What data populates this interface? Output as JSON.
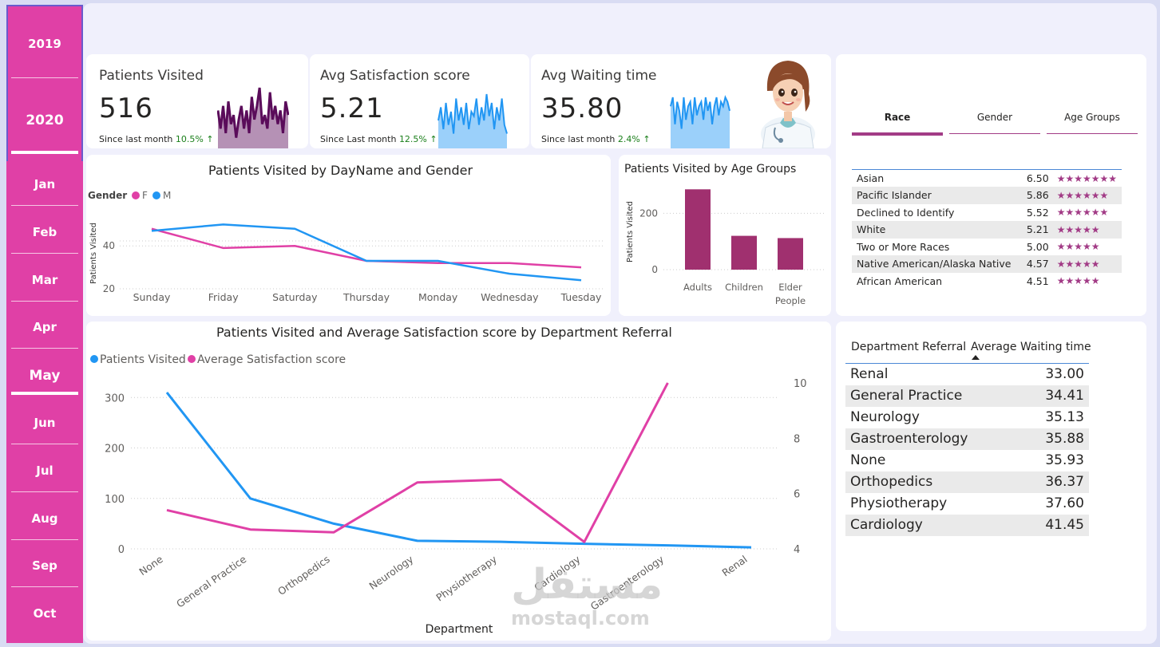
{
  "sidebar": {
    "years": [
      "2019",
      "2020"
    ],
    "selected_year": "2020",
    "months": [
      "Jan",
      "Feb",
      "Mar",
      "Apr",
      "May",
      "Jun",
      "Jul",
      "Aug",
      "Sep",
      "Oct"
    ],
    "selected_month": "May",
    "accent": "#e040a6"
  },
  "kpis": [
    {
      "title": "Patients Visited",
      "value": "516",
      "since_label": "Since last month",
      "change": "10.5% ↑",
      "spark_color": "#5a0c5a"
    },
    {
      "title": "Avg Satisfaction score",
      "value": "5.21",
      "since_label": "Since Last month",
      "change": "12.5% ↑",
      "spark_color": "#2196f3"
    },
    {
      "title": "Avg Waiting time",
      "value": "35.80",
      "since_label": "Since last month",
      "change": "2.4% ↑",
      "spark_color": "#2196f3"
    }
  ],
  "slicer": {
    "tabs": [
      "Race",
      "Gender",
      "Age Groups"
    ],
    "active": "Race"
  },
  "race_table": [
    {
      "race": "Asian",
      "score": "6.50",
      "stars": "★★★★★★★"
    },
    {
      "race": "Pacific Islander",
      "score": "5.86",
      "stars": "★★★★★★"
    },
    {
      "race": "Declined to Identify",
      "score": "5.52",
      "stars": "★★★★★★"
    },
    {
      "race": "White",
      "score": "5.21",
      "stars": "★★★★★"
    },
    {
      "race": "Two or More Races",
      "score": "5.00",
      "stars": "★★★★★"
    },
    {
      "race": "Native American/Alaska Native",
      "score": "4.57",
      "stars": "★★★★★"
    },
    {
      "race": "African American",
      "score": "4.51",
      "stars": "★★★★★"
    }
  ],
  "dept_table": {
    "col1": "Department Referral",
    "col2": "Average Waiting time",
    "rows": [
      {
        "dept": "Renal",
        "wait": "33.00"
      },
      {
        "dept": "General Practice",
        "wait": "34.41"
      },
      {
        "dept": "Neurology",
        "wait": "35.13"
      },
      {
        "dept": "Gastroenterology",
        "wait": "35.88"
      },
      {
        "dept": "None",
        "wait": "35.93"
      },
      {
        "dept": "Orthopedics",
        "wait": "36.37"
      },
      {
        "dept": "Physiotherapy",
        "wait": "37.60"
      },
      {
        "dept": "Cardiology",
        "wait": "41.45"
      }
    ]
  },
  "watermark": {
    "arabic": "مستقل",
    "latin": "mostaql.com"
  },
  "chart_data": [
    {
      "type": "line",
      "title": "Patients Visited by DayName and Gender",
      "legend_title": "Gender",
      "ylabel": "Patients Visited",
      "categories": [
        "Sunday",
        "Friday",
        "Saturday",
        "Thursday",
        "Monday",
        "Wednesday",
        "Tuesday"
      ],
      "ylim": [
        17,
        52
      ],
      "yticks": [
        20,
        40
      ],
      "series": [
        {
          "name": "F",
          "color": "#e040a6",
          "values": [
            48,
            39,
            40,
            33,
            32,
            32,
            30
          ]
        },
        {
          "name": "M",
          "color": "#2196f3",
          "values": [
            47,
            50,
            48,
            33,
            33,
            27,
            24
          ]
        }
      ]
    },
    {
      "type": "bar",
      "title": "Patients Visited by Age Groups",
      "ylabel": "Patients Visited",
      "categories": [
        "Adults",
        "Children",
        "Elder People"
      ],
      "values": [
        285,
        120,
        112
      ],
      "ylim": [
        0,
        300
      ],
      "yticks": [
        0,
        200
      ],
      "color": "#a0306f"
    },
    {
      "type": "line",
      "title": "Patients Visited and Average Satisfaction score by Department Referral",
      "xlabel": "Department",
      "categories": [
        "None",
        "General Practice",
        "Orthopedics",
        "Neurology",
        "Physiotherapy",
        "Cardiology",
        "Gastroenterology",
        "Renal"
      ],
      "ylim_left": [
        0,
        340
      ],
      "yticks_left": [
        0,
        100,
        200,
        300
      ],
      "ylim_right": [
        4,
        10.2
      ],
      "yticks_right": [
        4,
        6,
        8,
        10
      ],
      "series": [
        {
          "name": "Patients Visited",
          "axis": "left",
          "color": "#2196f3",
          "values": [
            310,
            100,
            50,
            16,
            14,
            10,
            7,
            3
          ]
        },
        {
          "name": "Average Satisfaction score",
          "axis": "right",
          "color": "#e040a6",
          "values": [
            5.4,
            4.7,
            4.6,
            6.4,
            6.5,
            4.25,
            10.0,
            null
          ]
        }
      ]
    },
    {
      "type": "area",
      "title": "",
      "series": [
        {
          "name": "",
          "values": [
            8,
            4,
            9,
            3,
            10,
            5,
            7,
            2,
            6,
            9,
            4,
            8,
            3,
            11,
            6,
            9,
            13,
            5,
            7,
            4,
            12,
            6,
            9,
            5,
            8,
            3,
            10,
            7
          ]
        }
      ],
      "color": "#5a0c5a"
    },
    {
      "type": "area",
      "title": "",
      "series": [
        {
          "name": "",
          "values": [
            6,
            9,
            4,
            10,
            5,
            8,
            3,
            11,
            6,
            9,
            5,
            10,
            4,
            8,
            7,
            11,
            5,
            9,
            6,
            12,
            7,
            10,
            4,
            9,
            6,
            11,
            5,
            3
          ]
        }
      ],
      "color": "#2196f3"
    },
    {
      "type": "area",
      "title": "",
      "series": [
        {
          "name": "",
          "values": [
            9,
            11,
            5,
            10,
            8,
            4,
            11,
            6,
            9,
            10,
            5,
            11,
            7,
            9,
            10,
            6,
            11,
            8,
            10,
            5,
            9,
            11,
            7,
            10,
            9,
            11,
            10,
            8
          ]
        }
      ],
      "color": "#2196f3"
    }
  ]
}
